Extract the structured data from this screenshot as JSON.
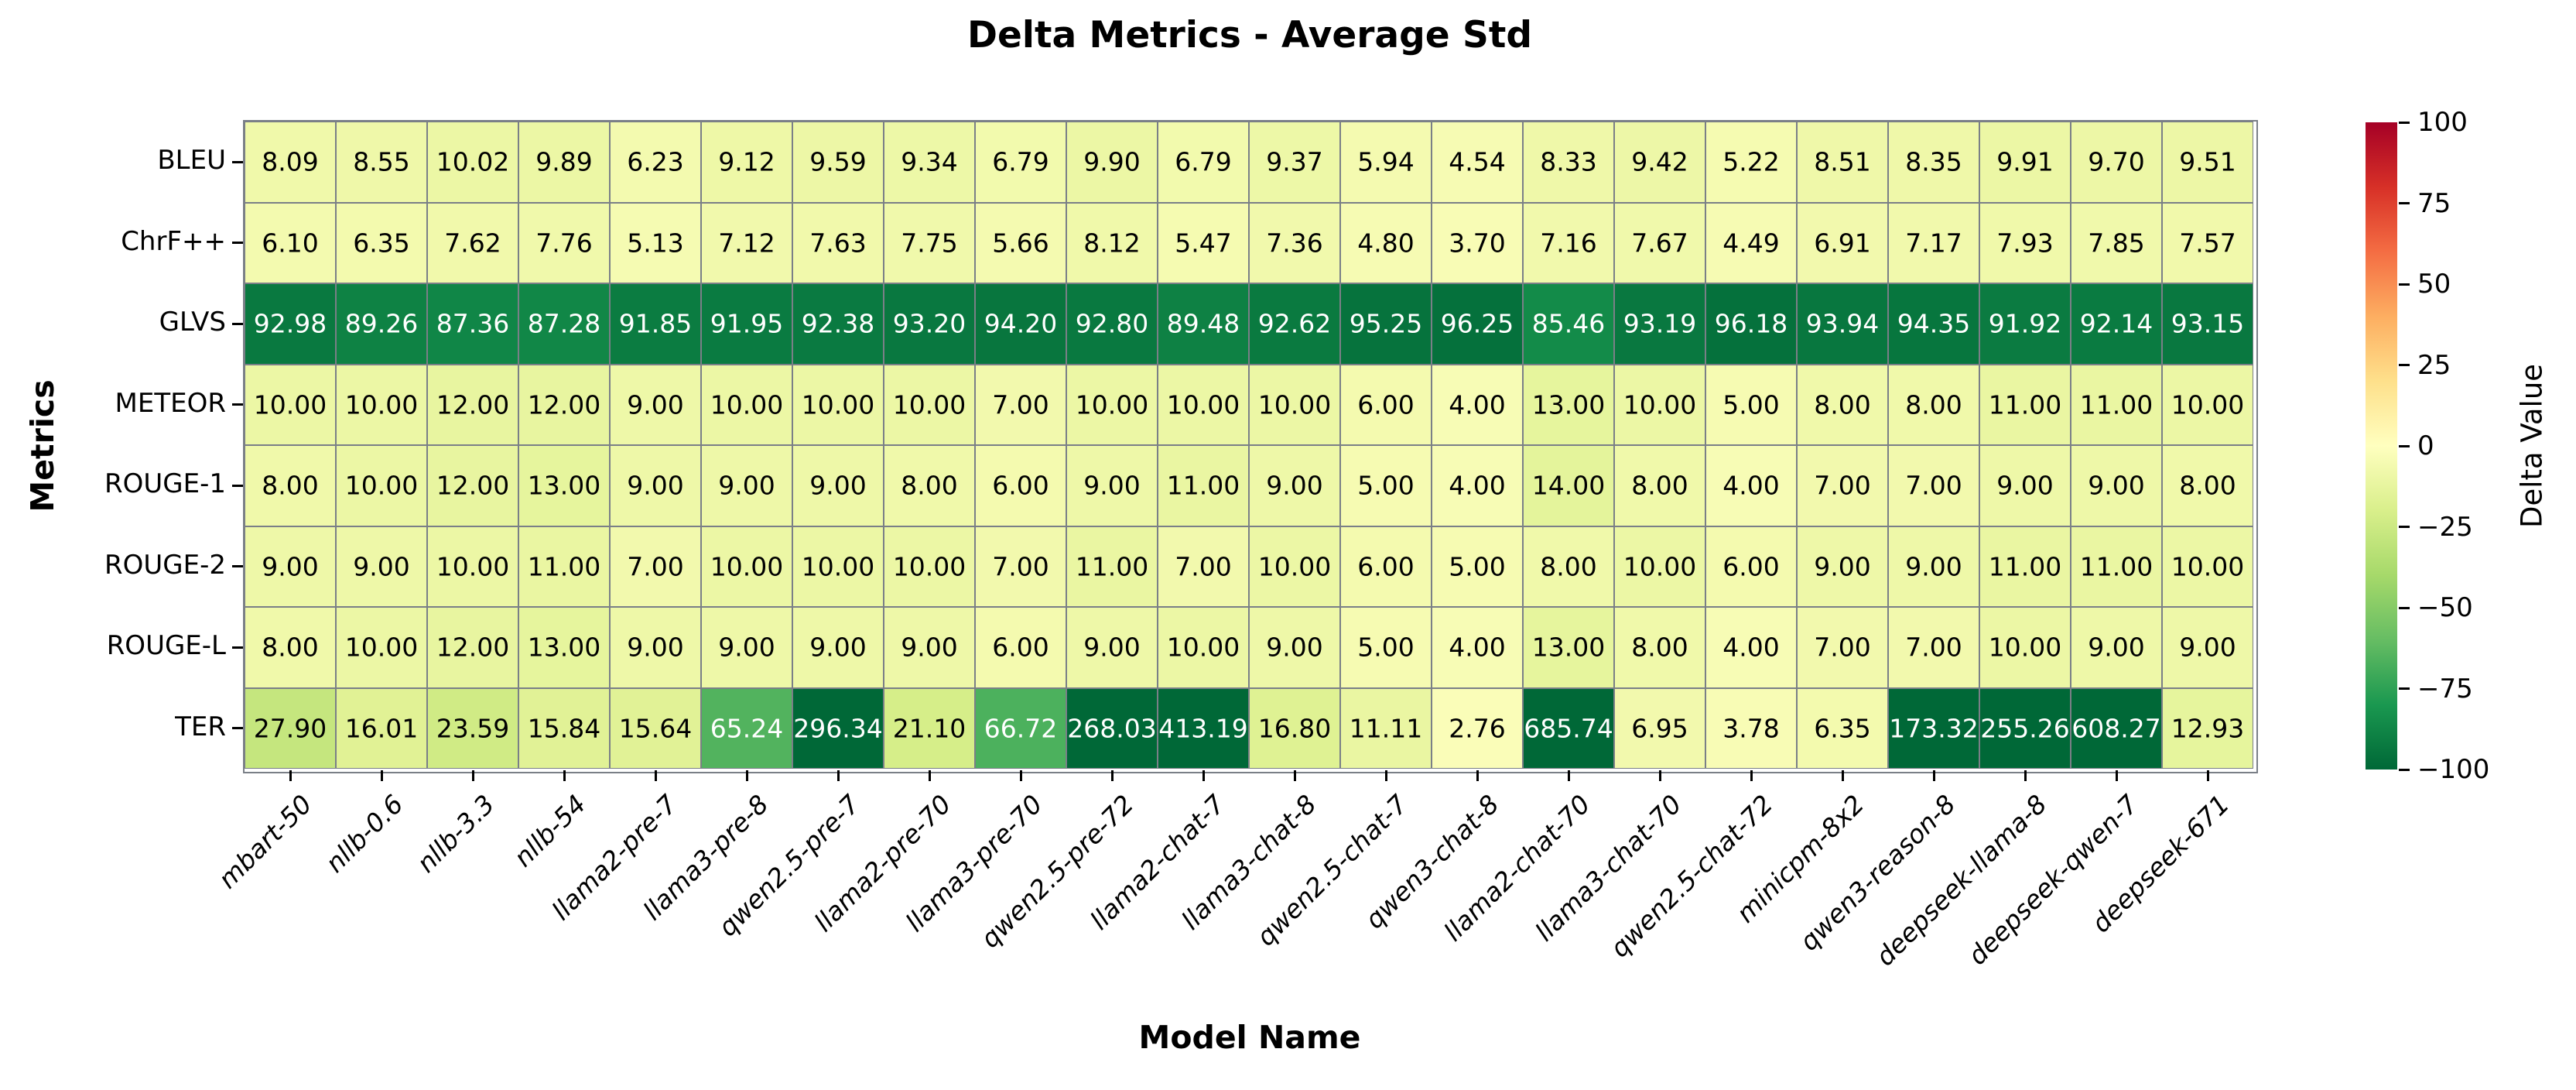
{
  "chart_data": {
    "type": "heatmap",
    "title": "Delta Metrics - Average Std",
    "xlabel": "Model Name",
    "ylabel": "Metrics",
    "x_categories": [
      "mbart-50",
      "nllb-0.6",
      "nllb-3.3",
      "nllb-54",
      "llama2-pre-7",
      "llama3-pre-8",
      "qwen2.5-pre-7",
      "llama2-pre-70",
      "llama3-pre-70",
      "qwen2.5-pre-72",
      "llama2-chat-7",
      "llama3-chat-8",
      "qwen2.5-chat-7",
      "qwen3-chat-8",
      "llama2-chat-70",
      "llama3-chat-70",
      "qwen2.5-chat-72",
      "minicpm-8x2",
      "qwen3-reason-8",
      "deepseek-llama-8",
      "deepseek-qwen-7",
      "deepseek-671"
    ],
    "y_categories": [
      "BLEU",
      "ChrF++",
      "GLVS",
      "METEOR",
      "ROUGE-1",
      "ROUGE-2",
      "ROUGE-L",
      "TER"
    ],
    "values": [
      [
        8.09,
        8.55,
        10.02,
        9.89,
        6.23,
        9.12,
        9.59,
        9.34,
        6.79,
        9.9,
        6.79,
        9.37,
        5.94,
        4.54,
        8.33,
        9.42,
        5.22,
        8.51,
        8.35,
        9.91,
        9.7,
        9.51
      ],
      [
        6.1,
        6.35,
        7.62,
        7.76,
        5.13,
        7.12,
        7.63,
        7.75,
        5.66,
        8.12,
        5.47,
        7.36,
        4.8,
        3.7,
        7.16,
        7.67,
        4.49,
        6.91,
        7.17,
        7.93,
        7.85,
        7.57
      ],
      [
        92.98,
        89.26,
        87.36,
        87.28,
        91.85,
        91.95,
        92.38,
        93.2,
        94.2,
        92.8,
        89.48,
        92.62,
        95.25,
        96.25,
        85.46,
        93.19,
        96.18,
        93.94,
        94.35,
        91.92,
        92.14,
        93.15
      ],
      [
        10.0,
        10.0,
        12.0,
        12.0,
        9.0,
        10.0,
        10.0,
        10.0,
        7.0,
        10.0,
        10.0,
        10.0,
        6.0,
        4.0,
        13.0,
        10.0,
        5.0,
        8.0,
        8.0,
        11.0,
        11.0,
        10.0
      ],
      [
        8.0,
        10.0,
        12.0,
        13.0,
        9.0,
        9.0,
        9.0,
        8.0,
        6.0,
        9.0,
        11.0,
        9.0,
        5.0,
        4.0,
        14.0,
        8.0,
        4.0,
        7.0,
        7.0,
        9.0,
        9.0,
        8.0
      ],
      [
        9.0,
        9.0,
        10.0,
        11.0,
        7.0,
        10.0,
        10.0,
        10.0,
        7.0,
        11.0,
        7.0,
        10.0,
        6.0,
        5.0,
        8.0,
        10.0,
        6.0,
        9.0,
        9.0,
        11.0,
        11.0,
        10.0
      ],
      [
        8.0,
        10.0,
        12.0,
        13.0,
        9.0,
        9.0,
        9.0,
        9.0,
        6.0,
        9.0,
        10.0,
        9.0,
        5.0,
        4.0,
        13.0,
        8.0,
        4.0,
        7.0,
        7.0,
        10.0,
        9.0,
        9.0
      ],
      [
        27.9,
        16.01,
        23.59,
        15.84,
        15.64,
        65.24,
        296.34,
        21.1,
        66.72,
        268.03,
        413.19,
        16.8,
        11.11,
        2.76,
        685.74,
        6.95,
        3.78,
        6.35,
        173.32,
        255.26,
        608.27,
        12.93
      ]
    ],
    "value_decimals": 2,
    "colorbar": {
      "label": "Delta Value",
      "ticks": [
        100,
        75,
        50,
        25,
        0,
        -25,
        -50,
        -75,
        -100
      ],
      "vmin": -100,
      "vmax": 100
    },
    "colormap": {
      "name": "RdYlGn_r",
      "stops_low_to_high": [
        "#006837",
        "#1a9850",
        "#66bd63",
        "#a6d96a",
        "#d9ef8b",
        "#ffffbf",
        "#fee08b",
        "#fdae61",
        "#f46d43",
        "#d73027",
        "#a50026"
      ]
    },
    "grid_color": "#7a7f87",
    "annotation_text_colors": {
      "light_cells": "#000000",
      "dark_cells": "#ffffff"
    }
  }
}
